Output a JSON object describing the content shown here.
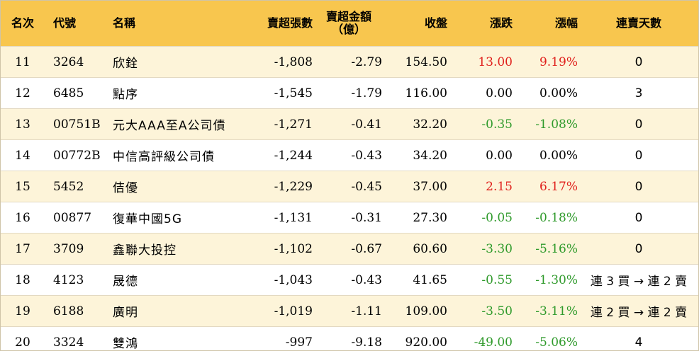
{
  "header": {
    "rank": "名次",
    "code": "代號",
    "name": "名稱",
    "net_sell_shares": "賣超張數",
    "net_sell_amount_1": "賣超金額",
    "net_sell_amount_2": "（億）",
    "close": "收盤",
    "change": "漲跌",
    "pct_change": "漲幅",
    "streak": "連賣天數"
  },
  "colors": {
    "header_bg": "#f8c64e",
    "odd_row_bg": "#fdf4d9",
    "up": "#e0201c",
    "down": "#2f9a2b"
  },
  "rows": [
    {
      "rank": "11",
      "code": "3264",
      "name": "欣銓",
      "shares": "-1,808",
      "amount": "-2.79",
      "close": "154.50",
      "change": "13.00",
      "pct": "9.19%",
      "streak": "0",
      "dir": "up"
    },
    {
      "rank": "12",
      "code": "6485",
      "name": "點序",
      "shares": "-1,545",
      "amount": "-1.79",
      "close": "116.00",
      "change": "0.00",
      "pct": "0.00%",
      "streak": "3",
      "dir": "flat"
    },
    {
      "rank": "13",
      "code": "00751B",
      "name": "元大AAA至A公司債",
      "shares": "-1,271",
      "amount": "-0.41",
      "close": "32.20",
      "change": "-0.35",
      "pct": "-1.08%",
      "streak": "0",
      "dir": "down"
    },
    {
      "rank": "14",
      "code": "00772B",
      "name": "中信高評級公司債",
      "shares": "-1,244",
      "amount": "-0.43",
      "close": "34.20",
      "change": "0.00",
      "pct": "0.00%",
      "streak": "0",
      "dir": "flat"
    },
    {
      "rank": "15",
      "code": "5452",
      "name": "佶優",
      "shares": "-1,229",
      "amount": "-0.45",
      "close": "37.00",
      "change": "2.15",
      "pct": "6.17%",
      "streak": "0",
      "dir": "up"
    },
    {
      "rank": "16",
      "code": "00877",
      "name": "復華中國5G",
      "shares": "-1,131",
      "amount": "-0.31",
      "close": "27.30",
      "change": "-0.05",
      "pct": "-0.18%",
      "streak": "0",
      "dir": "down"
    },
    {
      "rank": "17",
      "code": "3709",
      "name": "鑫聯大投控",
      "shares": "-1,102",
      "amount": "-0.67",
      "close": "60.60",
      "change": "-3.30",
      "pct": "-5.16%",
      "streak": "0",
      "dir": "down"
    },
    {
      "rank": "18",
      "code": "4123",
      "name": "晟德",
      "shares": "-1,043",
      "amount": "-0.43",
      "close": "41.65",
      "change": "-0.55",
      "pct": "-1.30%",
      "streak": "連 3 買 → 連 2 賣",
      "dir": "down"
    },
    {
      "rank": "19",
      "code": "6188",
      "name": "廣明",
      "shares": "-1,019",
      "amount": "-1.11",
      "close": "109.00",
      "change": "-3.50",
      "pct": "-3.11%",
      "streak": "連 2 買 → 連 2 賣",
      "dir": "down"
    },
    {
      "rank": "20",
      "code": "3324",
      "name": "雙鴻",
      "shares": "-997",
      "amount": "-9.18",
      "close": "920.00",
      "change": "-49.00",
      "pct": "-5.06%",
      "streak": "4",
      "dir": "down"
    }
  ]
}
